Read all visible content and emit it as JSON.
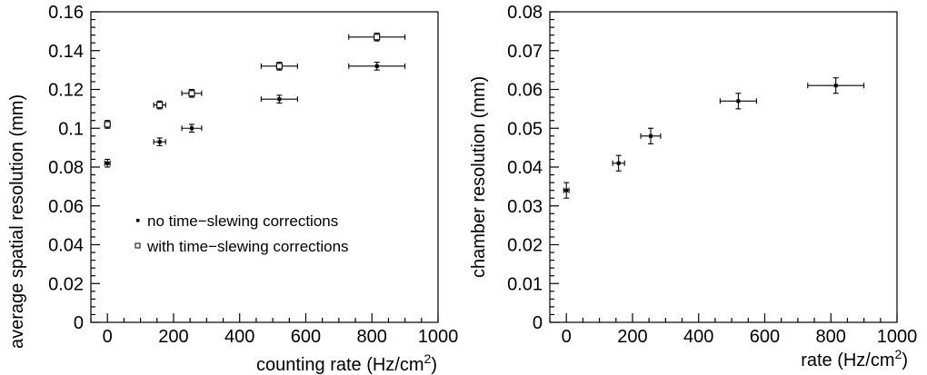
{
  "chart_data": [
    {
      "type": "scatter",
      "xlabel": "counting rate (Hz/cm",
      "xlabel_sup": "2",
      "xlabel_end": ")",
      "ylabel": "average spatial resolution (mm)",
      "xlim": [
        -50,
        1000
      ],
      "ylim": [
        0,
        0.16
      ],
      "xticks": [
        "0",
        "200",
        "400",
        "600",
        "800",
        "1000"
      ],
      "yticks": [
        "0",
        "0.02",
        "0.04",
        "0.06",
        "0.08",
        "0.1",
        "0.12",
        "0.14",
        "0.16"
      ],
      "legend_position": "lower-middle",
      "series": [
        {
          "name": "no time−slewing corrections",
          "marker": "filled-square",
          "points": [
            {
              "x": 0,
              "y": 0.082,
              "xerr": 8,
              "yerr": 0.002
            },
            {
              "x": 158,
              "y": 0.093,
              "xerr": 18,
              "yerr": 0.002
            },
            {
              "x": 255,
              "y": 0.1,
              "xerr": 30,
              "yerr": 0.002
            },
            {
              "x": 520,
              "y": 0.115,
              "xerr": 55,
              "yerr": 0.002
            },
            {
              "x": 815,
              "y": 0.132,
              "xerr": 85,
              "yerr": 0.002
            }
          ]
        },
        {
          "name": "with time−slewing corrections",
          "marker": "open-square",
          "points": [
            {
              "x": 0,
              "y": 0.102,
              "xerr": 8,
              "yerr": 0.002
            },
            {
              "x": 158,
              "y": 0.112,
              "xerr": 18,
              "yerr": 0.002
            },
            {
              "x": 255,
              "y": 0.118,
              "xerr": 30,
              "yerr": 0.002
            },
            {
              "x": 520,
              "y": 0.132,
              "xerr": 55,
              "yerr": 0.002
            },
            {
              "x": 815,
              "y": 0.147,
              "xerr": 85,
              "yerr": 0.002
            }
          ]
        }
      ]
    },
    {
      "type": "scatter",
      "xlabel": "rate (Hz/cm",
      "xlabel_sup": "2",
      "xlabel_end": ")",
      "ylabel": "chamber resolution (mm)",
      "xlim": [
        -50,
        1000
      ],
      "ylim": [
        0,
        0.08
      ],
      "xticks": [
        "0",
        "200",
        "400",
        "600",
        "800",
        "1000"
      ],
      "yticks": [
        "0",
        "0.01",
        "0.02",
        "0.03",
        "0.04",
        "0.05",
        "0.06",
        "0.07",
        "0.08"
      ],
      "series": [
        {
          "marker": "filled-square",
          "points": [
            {
              "x": 0,
              "y": 0.034,
              "xerr": 8,
              "yerr": 0.002
            },
            {
              "x": 158,
              "y": 0.041,
              "xerr": 18,
              "yerr": 0.002
            },
            {
              "x": 255,
              "y": 0.048,
              "xerr": 30,
              "yerr": 0.002
            },
            {
              "x": 520,
              "y": 0.057,
              "xerr": 55,
              "yerr": 0.002
            },
            {
              "x": 815,
              "y": 0.061,
              "xerr": 85,
              "yerr": 0.002
            }
          ]
        }
      ]
    }
  ]
}
